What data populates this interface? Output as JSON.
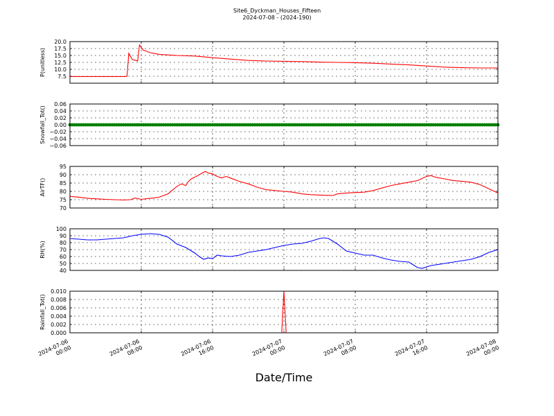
{
  "title": "Site6_Dyckman_Houses_Fifteen",
  "subtitle": "2024-07-08 - (2024-190)",
  "xlabel": "Date/Time",
  "x_ticks": [
    {
      "line1": "2024-07-06",
      "line2": "00:00"
    },
    {
      "line1": "2024-07-06",
      "line2": "08:00"
    },
    {
      "line1": "2024-07-06",
      "line2": "16:00"
    },
    {
      "line1": "2024-07-07",
      "line2": "00:00"
    },
    {
      "line1": "2024-07-07",
      "line2": "08:00"
    },
    {
      "line1": "2024-07-07",
      "line2": "16:00"
    },
    {
      "line1": "2024-07-08",
      "line2": "00:00"
    }
  ],
  "chart_data": [
    {
      "type": "line",
      "ylabel": "P(unitless)",
      "color": "#ff0000",
      "ylim": [
        5.0,
        20.0
      ],
      "yticks": [
        "7.5",
        "10.0",
        "12.5",
        "15.0",
        "17.5",
        "20.0"
      ],
      "ytick_values": [
        7.5,
        10.0,
        12.5,
        15.0,
        17.5,
        20.0
      ],
      "x_unit": "hours since 2024-07-06 00:00",
      "xlim": [
        0,
        48
      ],
      "x": [
        0,
        2,
        4,
        6.2,
        6.4,
        6.6,
        7,
        7.4,
        7.6,
        7.8,
        8.2,
        9,
        10,
        12,
        14,
        16,
        18,
        20,
        22,
        24,
        26,
        28,
        30,
        32,
        34,
        36,
        38,
        40,
        42,
        44,
        46,
        48
      ],
      "values": [
        7.4,
        7.4,
        7.4,
        7.4,
        7.5,
        15.8,
        13.5,
        13.2,
        13.0,
        18.8,
        17.0,
        16.0,
        15.4,
        15.0,
        14.8,
        14.2,
        13.7,
        13.2,
        13.0,
        12.9,
        12.8,
        12.6,
        12.5,
        12.4,
        12.2,
        11.9,
        11.6,
        11.2,
        10.8,
        10.6,
        10.5,
        10.5
      ]
    },
    {
      "type": "scatter",
      "ylabel": "Snowfall_Tot()",
      "color": "#008000",
      "ylim": [
        -0.06,
        0.06
      ],
      "yticks": [
        "−0.06",
        "−0.04",
        "−0.02",
        "0.00",
        "0.02",
        "0.04",
        "0.06"
      ],
      "ytick_values": [
        -0.06,
        -0.04,
        -0.02,
        0.0,
        0.02,
        0.04,
        0.06
      ],
      "x_unit": "hours since 2024-07-06 00:00",
      "xlim": [
        0,
        48
      ],
      "constant_value": 0.0,
      "point_interval_hours": 0.25
    },
    {
      "type": "line",
      "ylabel": "AirTF()",
      "color": "#ff0000",
      "ylim": [
        70,
        95
      ],
      "yticks": [
        "70",
        "75",
        "80",
        "85",
        "90",
        "95"
      ],
      "ytick_values": [
        70,
        75,
        80,
        85,
        90,
        95
      ],
      "x_unit": "hours since 2024-07-06 00:00",
      "xlim": [
        0,
        48
      ],
      "x": [
        0,
        1,
        2,
        3,
        4,
        5,
        6,
        6.8,
        7.3,
        8,
        8.6,
        9.4,
        10,
        11,
        12,
        12.5,
        13,
        13.3,
        13.6,
        14,
        15,
        15.2,
        15.5,
        16,
        16.5,
        17,
        17.5,
        18,
        19,
        20,
        21,
        22,
        23,
        24,
        25,
        26,
        27,
        28,
        29,
        29.5,
        30,
        31,
        32,
        33,
        34,
        35,
        36,
        37,
        38,
        39,
        40,
        40.5,
        41,
        42,
        43,
        44,
        45,
        46,
        47,
        48
      ],
      "values": [
        77,
        76.5,
        75.8,
        75.5,
        75.2,
        75.0,
        74.8,
        75.0,
        76.0,
        75.2,
        75.6,
        76.0,
        76.5,
        78.5,
        83.0,
        84.5,
        83.5,
        86.0,
        87.5,
        88.5,
        91.5,
        92.0,
        91.0,
        90.5,
        89.0,
        88.0,
        89.0,
        88.0,
        86.0,
        84.5,
        82.5,
        81.0,
        80.5,
        80.0,
        79.5,
        78.5,
        78.0,
        77.8,
        77.6,
        77.5,
        78.5,
        79.0,
        79.3,
        79.5,
        80.5,
        82.0,
        83.5,
        84.5,
        85.5,
        86.5,
        89.0,
        89.5,
        88.5,
        87.5,
        86.5,
        86.0,
        85.5,
        84.0,
        81.5,
        79.0
      ]
    },
    {
      "type": "line",
      "ylabel": "RH(%)",
      "color": "#0000ff",
      "ylim": [
        40,
        100
      ],
      "yticks": [
        "40",
        "50",
        "60",
        "70",
        "80",
        "90",
        "100"
      ],
      "ytick_values": [
        40,
        50,
        60,
        70,
        80,
        90,
        100
      ],
      "x_unit": "hours since 2024-07-06 00:00",
      "xlim": [
        0,
        48
      ],
      "x": [
        0,
        1,
        2,
        3,
        4,
        5,
        6,
        7,
        8,
        9,
        10,
        11,
        12,
        13,
        14,
        14.5,
        15,
        15.5,
        16,
        16.5,
        17,
        18,
        19,
        20,
        21,
        22,
        23,
        24,
        25,
        26,
        27,
        28,
        28.5,
        29,
        30,
        31,
        32,
        33,
        34,
        35,
        36,
        37,
        38,
        38.5,
        39,
        39.5,
        40,
        40.5,
        41,
        42,
        43,
        44,
        45,
        46,
        47,
        48
      ],
      "values": [
        86,
        85,
        84,
        84,
        85,
        86,
        87,
        90,
        92,
        93,
        92,
        88,
        78,
        73,
        65,
        60,
        56,
        58,
        57,
        62,
        61,
        60,
        62,
        66,
        68,
        70,
        73,
        76,
        78,
        79,
        82,
        86,
        87,
        86,
        78,
        68,
        65,
        62,
        62,
        58,
        55,
        53,
        52,
        48,
        44,
        43,
        45,
        47,
        48,
        50,
        52,
        54,
        56,
        60,
        66,
        70
      ]
    },
    {
      "type": "line",
      "ylabel": "Rainfall_Tot()",
      "color": "#ff0000",
      "ylim": [
        0.0,
        0.01
      ],
      "yticks": [
        "0.000",
        "0.002",
        "0.004",
        "0.006",
        "0.008",
        "0.010"
      ],
      "ytick_values": [
        0.0,
        0.002,
        0.004,
        0.006,
        0.008,
        0.01
      ],
      "x_unit": "hours since 2024-07-06 00:00",
      "xlim": [
        0,
        48
      ],
      "x": [
        0,
        23.75,
        24.0,
        24.25,
        48
      ],
      "values": [
        0.0,
        0.0,
        0.01,
        0.0,
        0.0
      ]
    }
  ]
}
